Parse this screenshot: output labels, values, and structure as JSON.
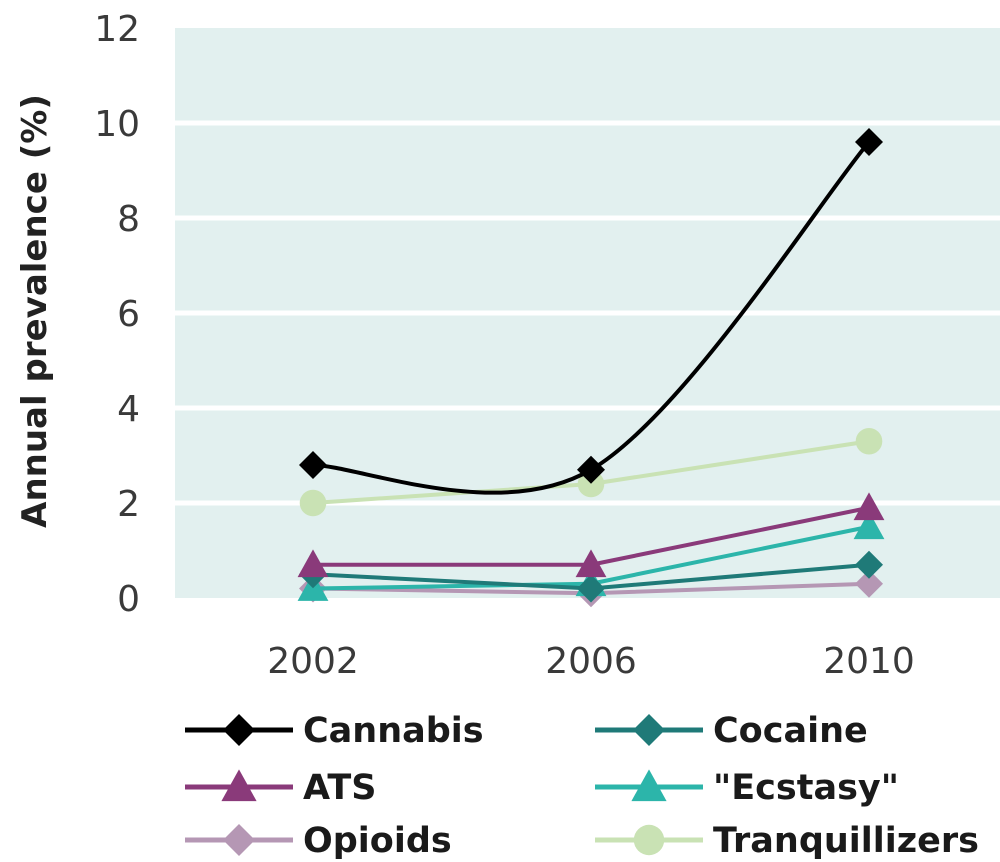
{
  "chart_data": {
    "type": "line",
    "title": "",
    "xlabel": "",
    "ylabel": "Annual prevalence (%)",
    "x": [
      "2002",
      "2006",
      "2010"
    ],
    "ylim": [
      0,
      12
    ],
    "yticks": [
      "0",
      "2",
      "4",
      "6",
      "8",
      "10",
      "12"
    ],
    "grid": true,
    "legend_position": "bottom",
    "background_color": "#e2f0ef",
    "series": [
      {
        "name": "Cannabis",
        "values": [
          2.8,
          2.7,
          9.6
        ],
        "color": "#000000",
        "marker": "diamond",
        "smooth": true
      },
      {
        "name": "Cocaine",
        "values": [
          0.5,
          0.2,
          0.7
        ],
        "color": "#1f7a78",
        "marker": "diamond",
        "smooth": false
      },
      {
        "name": "ATS",
        "values": [
          0.7,
          0.7,
          1.9
        ],
        "color": "#8a3a7a",
        "marker": "triangle",
        "smooth": false
      },
      {
        "name": "\"Ecstasy\"",
        "values": [
          0.2,
          0.3,
          1.5
        ],
        "color": "#2cb5aa",
        "marker": "triangle",
        "smooth": false
      },
      {
        "name": "Opioids",
        "values": [
          0.2,
          0.1,
          0.3
        ],
        "color": "#b597b4",
        "marker": "diamond",
        "smooth": false
      },
      {
        "name": "Tranquillizers",
        "values": [
          2.0,
          2.4,
          3.3
        ],
        "color": "#c9e2b4",
        "marker": "circle",
        "smooth": false
      }
    ]
  }
}
